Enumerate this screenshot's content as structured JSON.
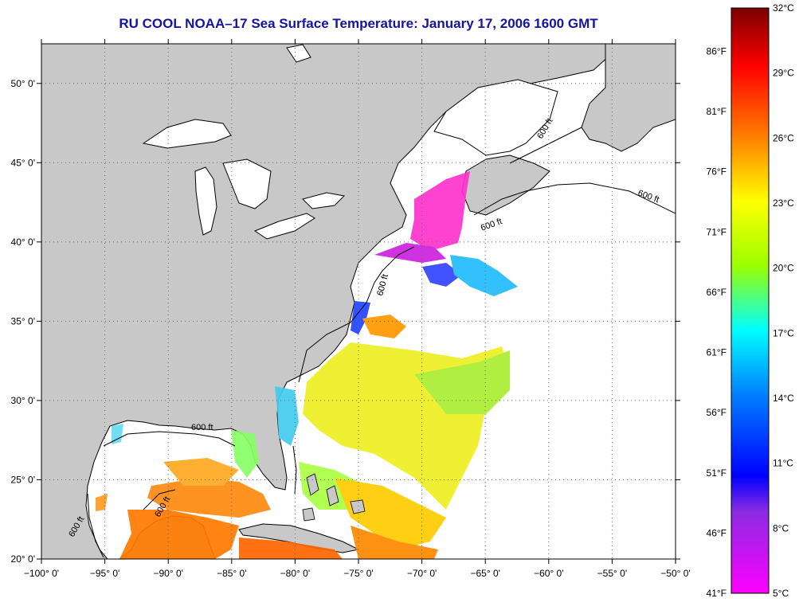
{
  "title": "RU COOL  NOAA–17  Sea Surface Temperature:  January 17, 2006 1600 GMT",
  "map": {
    "lon_range": [
      -100,
      -50
    ],
    "lat_range": [
      20,
      52.5
    ],
    "lon_ticks": [
      "−100° 0'",
      "−95° 0'",
      "−90° 0'",
      "−85° 0'",
      "−80° 0'",
      "−75° 0'",
      "−70° 0'",
      "−65° 0'",
      "−60° 0'",
      "−55° 0'",
      "−50° 0'"
    ],
    "lat_ticks": [
      "20° 0'",
      "25° 0'",
      "30° 0'",
      "35° 0'",
      "40° 0'",
      "45° 0'",
      "50° 0'"
    ],
    "grid": "dotted",
    "land_color": "#c8c8c8",
    "water_color": "#ffffff",
    "isobath_labels": [
      "600 ft",
      "600 ft",
      "600 ft",
      "600 ft",
      "600 ft",
      "600 ft",
      "600 ft"
    ]
  },
  "colorbar": {
    "celsius_labels": [
      "32°C",
      "29°C",
      "26°C",
      "23°C",
      "20°C",
      "17°C",
      "14°C",
      "11°C",
      "8°C",
      "5°C"
    ],
    "fahrenheit_labels": [
      "86°F",
      "81°F",
      "76°F",
      "71°F",
      "66°F",
      "61°F",
      "56°F",
      "51°F",
      "46°F",
      "41°F"
    ],
    "range_c": [
      5,
      32
    ],
    "colors": [
      "#7a0000",
      "#ff0000",
      "#ff7f00",
      "#ffff00",
      "#9cff00",
      "#00ffff",
      "#0080ff",
      "#0000ff",
      "#8a2be2",
      "#ff00ff"
    ]
  }
}
